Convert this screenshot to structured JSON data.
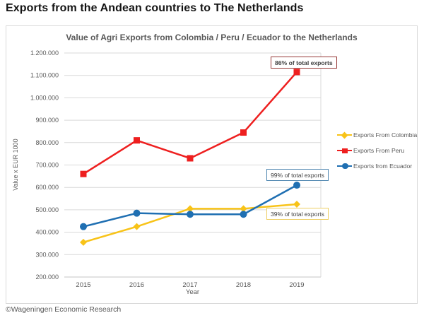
{
  "page": {
    "title": "Exports from the Andean countries to The Netherlands",
    "footer": "©Wageningen Economic Research"
  },
  "chart_data": {
    "type": "line",
    "title": "Value of Agri Exports from Colombia / Peru / Ecuador to the Netherlands",
    "xlabel": "Year",
    "ylabel": "Value x EUR 1000",
    "categories": [
      "2015",
      "2016",
      "2017",
      "2018",
      "2019"
    ],
    "ylim": [
      200000,
      1200000
    ],
    "ytick_step": 100000,
    "ytick_labels": [
      "200.000",
      "300.000",
      "400.000",
      "500.000",
      "600.000",
      "700.000",
      "800.000",
      "900.000",
      "1.000.000",
      "1.100.000",
      "1.200.000"
    ],
    "grid": true,
    "legend_position": "right",
    "series": [
      {
        "name": "Exports From Colombia",
        "color": "#F8C318",
        "marker": "diamond",
        "values": [
          355000,
          425000,
          505000,
          505000,
          525000
        ]
      },
      {
        "name": "Exports From Peru",
        "color": "#EE1F1F",
        "marker": "square",
        "values": [
          660000,
          810000,
          730000,
          845000,
          1115000
        ]
      },
      {
        "name": "Exports from Ecuador",
        "color": "#1F6FB2",
        "marker": "circle",
        "values": [
          425000,
          485000,
          480000,
          480000,
          610000
        ]
      }
    ],
    "annotations": [
      {
        "text": "86% of total exports",
        "border_color": "#953735",
        "series": "Exports From Peru",
        "at": "2019"
      },
      {
        "text": "99% of total exports",
        "border_color": "#4F86B0",
        "series": "Exports from Ecuador",
        "at": "2019"
      },
      {
        "text": "39% of total exports",
        "border_color": "#EDCE63",
        "series": "Exports From Colombia",
        "at": "2019"
      }
    ],
    "colors": {
      "gridline": "#d9d9d9",
      "axis_text": "#595959",
      "title_text": "#595959"
    }
  }
}
